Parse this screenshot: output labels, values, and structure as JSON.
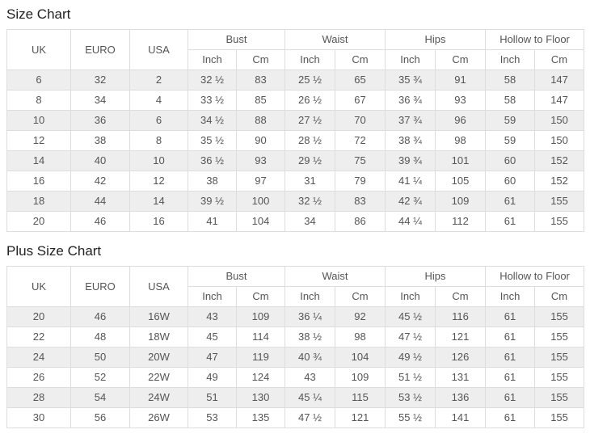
{
  "colors": {
    "stripe_row_bg": "#eeeeee",
    "table_border": "#dddddd",
    "cell_text": "#555555",
    "title_text": "#222222",
    "page_bg": "#ffffff"
  },
  "size_chart": {
    "title": "Size Chart",
    "columns": [
      "UK",
      "EURO",
      "USA"
    ],
    "groups": [
      {
        "label": "Bust",
        "sub": [
          "Inch",
          "Cm"
        ]
      },
      {
        "label": "Waist",
        "sub": [
          "Inch",
          "Cm"
        ]
      },
      {
        "label": "Hips",
        "sub": [
          "Inch",
          "Cm"
        ]
      },
      {
        "label": "Hollow to Floor",
        "sub": [
          "Inch",
          "Cm"
        ]
      }
    ],
    "rows": [
      [
        "6",
        "32",
        "2",
        "32 ½",
        "83",
        "25 ½",
        "65",
        "35 ¾",
        "91",
        "58",
        "147"
      ],
      [
        "8",
        "34",
        "4",
        "33 ½",
        "85",
        "26 ½",
        "67",
        "36 ¾",
        "93",
        "58",
        "147"
      ],
      [
        "10",
        "36",
        "6",
        "34 ½",
        "88",
        "27 ½",
        "70",
        "37 ¾",
        "96",
        "59",
        "150"
      ],
      [
        "12",
        "38",
        "8",
        "35 ½",
        "90",
        "28 ½",
        "72",
        "38 ¾",
        "98",
        "59",
        "150"
      ],
      [
        "14",
        "40",
        "10",
        "36 ½",
        "93",
        "29 ½",
        "75",
        "39 ¾",
        "101",
        "60",
        "152"
      ],
      [
        "16",
        "42",
        "12",
        "38",
        "97",
        "31",
        "79",
        "41 ¼",
        "105",
        "60",
        "152"
      ],
      [
        "18",
        "44",
        "14",
        "39 ½",
        "100",
        "32 ½",
        "83",
        "42 ¾",
        "109",
        "61",
        "155"
      ],
      [
        "20",
        "46",
        "16",
        "41",
        "104",
        "34",
        "86",
        "44 ¼",
        "112",
        "61",
        "155"
      ]
    ]
  },
  "plus_size_chart": {
    "title": "Plus Size Chart",
    "columns": [
      "UK",
      "EURO",
      "USA"
    ],
    "groups": [
      {
        "label": "Bust",
        "sub": [
          "Inch",
          "Cm"
        ]
      },
      {
        "label": "Waist",
        "sub": [
          "Inch",
          "Cm"
        ]
      },
      {
        "label": "Hips",
        "sub": [
          "Inch",
          "Cm"
        ]
      },
      {
        "label": "Hollow to Floor",
        "sub": [
          "Inch",
          "Cm"
        ]
      }
    ],
    "rows": [
      [
        "20",
        "46",
        "16W",
        "43",
        "109",
        "36 ¼",
        "92",
        "45 ½",
        "116",
        "61",
        "155"
      ],
      [
        "22",
        "48",
        "18W",
        "45",
        "114",
        "38 ½",
        "98",
        "47 ½",
        "121",
        "61",
        "155"
      ],
      [
        "24",
        "50",
        "20W",
        "47",
        "119",
        "40 ¾",
        "104",
        "49 ½",
        "126",
        "61",
        "155"
      ],
      [
        "26",
        "52",
        "22W",
        "49",
        "124",
        "43",
        "109",
        "51 ½",
        "131",
        "61",
        "155"
      ],
      [
        "28",
        "54",
        "24W",
        "51",
        "130",
        "45 ¼",
        "115",
        "53 ½",
        "136",
        "61",
        "155"
      ],
      [
        "30",
        "56",
        "26W",
        "53",
        "135",
        "47 ½",
        "121",
        "55 ½",
        "141",
        "61",
        "155"
      ]
    ]
  }
}
